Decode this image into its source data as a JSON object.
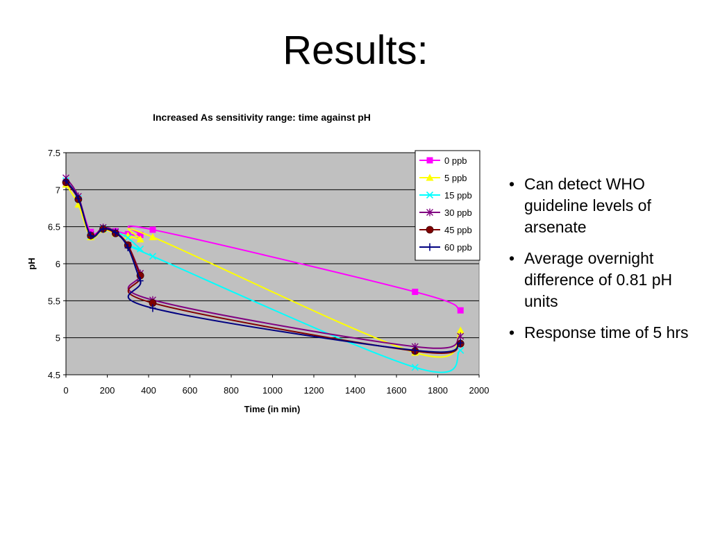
{
  "slide": {
    "title": "Results:",
    "bullets": [
      "Can detect WHO guideline levels of arsenate",
      "Average overnight difference of 0.81 pH units",
      "Response time of 5 hrs"
    ],
    "bullet_glyph": "•"
  },
  "chart_data": {
    "type": "line",
    "title": "Increased As sensitivity range: time against pH",
    "xlabel": "Time (in min)",
    "ylabel": "pH",
    "xlim": [
      0,
      2000
    ],
    "ylim": [
      4.5,
      7.5
    ],
    "xticks": [
      0,
      200,
      400,
      600,
      800,
      1000,
      1200,
      1400,
      1600,
      1800,
      2000
    ],
    "yticks": [
      4.5,
      5,
      5.5,
      6,
      6.5,
      7,
      7.5
    ],
    "plot_background": "#c0c0c0",
    "grid": "horizontal",
    "legend_position": "top-right (inside plot)",
    "series": [
      {
        "name": "0 ppb",
        "color": "#ff00ff",
        "marker": "square",
        "x": [
          0,
          60,
          120,
          180,
          240,
          300,
          360,
          420,
          1690,
          1910
        ],
        "y": [
          7.1,
          6.88,
          6.43,
          6.46,
          6.44,
          6.4,
          6.39,
          6.46,
          5.62,
          5.37
        ]
      },
      {
        "name": "5 ppb",
        "color": "#ffff00",
        "marker": "triangle",
        "x": [
          0,
          60,
          120,
          180,
          240,
          300,
          360,
          420,
          1690,
          1910
        ],
        "y": [
          7.07,
          6.8,
          6.36,
          6.46,
          6.41,
          6.38,
          6.33,
          6.36,
          4.8,
          5.1
        ]
      },
      {
        "name": "15 ppb",
        "color": "#00ffff",
        "marker": "x",
        "x": [
          0,
          60,
          120,
          180,
          240,
          300,
          360,
          420,
          1690,
          1910
        ],
        "y": [
          7.12,
          6.88,
          6.38,
          6.47,
          6.43,
          6.35,
          6.2,
          6.1,
          4.6,
          4.83
        ]
      },
      {
        "name": "30 ppb",
        "color": "#800080",
        "marker": "star",
        "x": [
          0,
          60,
          120,
          180,
          240,
          300,
          360,
          420,
          1690,
          1910
        ],
        "y": [
          7.16,
          6.91,
          6.39,
          6.49,
          6.43,
          6.25,
          5.87,
          5.51,
          4.88,
          5.02
        ]
      },
      {
        "name": "45 ppb",
        "color": "#800000",
        "marker": "circle",
        "x": [
          0,
          60,
          120,
          180,
          240,
          300,
          360,
          420,
          1690,
          1910
        ],
        "y": [
          7.1,
          6.87,
          6.38,
          6.47,
          6.41,
          6.25,
          5.84,
          5.47,
          4.82,
          4.92
        ]
      },
      {
        "name": "60 ppb",
        "color": "#000080",
        "marker": "plus",
        "x": [
          0,
          60,
          120,
          180,
          240,
          300,
          360,
          420,
          1690,
          1910
        ],
        "y": [
          7.12,
          6.88,
          6.38,
          6.47,
          6.42,
          6.22,
          5.77,
          5.4,
          4.83,
          4.93
        ]
      }
    ]
  }
}
